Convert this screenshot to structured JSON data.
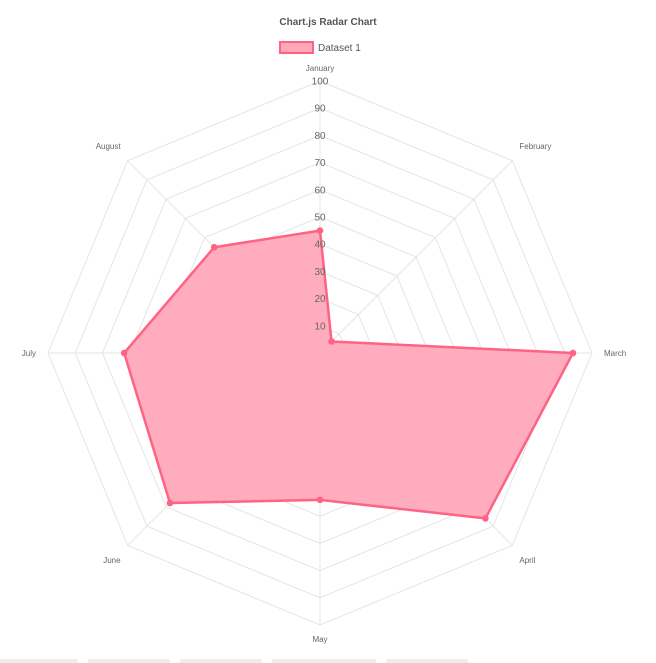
{
  "chart_data": {
    "type": "radar",
    "title": "Chart.js Radar Chart",
    "labels": [
      "January",
      "February",
      "March",
      "April",
      "May",
      "June",
      "July",
      "August"
    ],
    "series": [
      {
        "name": "Dataset 1",
        "values": [
          45,
          6,
          93,
          86,
          54,
          78,
          72,
          55
        ],
        "border_color": "#ff6384",
        "fill_color": "#ffa8ba"
      }
    ],
    "r_ticks": [
      "10",
      "20",
      "30",
      "40",
      "50",
      "60",
      "70",
      "80",
      "90",
      "100"
    ],
    "r_range": [
      0,
      100
    ],
    "grid": true,
    "legend_position": "top",
    "grid_color": "#e5e5e5"
  }
}
